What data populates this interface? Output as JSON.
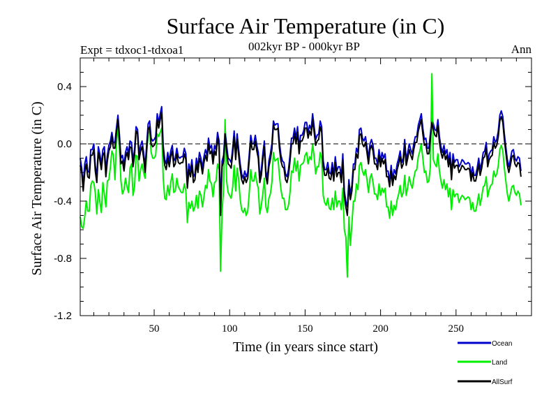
{
  "chart_data": {
    "type": "line",
    "title": "Surface Air Temperature (in C)",
    "subtitle": "002kyr BP - 000kyr BP",
    "left_label": "Expt = tdxoc1-tdxoa1",
    "right_label": "Ann",
    "xlabel": "Time (in years since start)",
    "ylabel": "Surface Air Temperature (in C)",
    "xlim": [
      1,
      300
    ],
    "ylim": [
      -1.2,
      0.6
    ],
    "x_ticks": [
      50,
      100,
      150,
      200,
      250
    ],
    "y_ticks": [
      -1.2,
      -0.8,
      -0.4,
      0.0,
      0.4
    ],
    "y_tick_labels": [
      "-1.2",
      "-0.8",
      "-0.4",
      "0.0",
      "0.4"
    ],
    "reference_line": 0.0,
    "legend_position": "bottom-right",
    "series": [
      {
        "name": "Ocean",
        "color": "#0000cc",
        "values": [
          -0.1,
          -0.17,
          -0.29,
          -0.14,
          -0.09,
          -0.19,
          -0.2,
          -0.04,
          -0.04,
          0.0,
          -0.15,
          -0.23,
          -0.02,
          -0.07,
          -0.14,
          -0.04,
          -0.02,
          -0.19,
          -0.08,
          -0.01,
          0.02,
          0.08,
          0.01,
          0.01,
          0.11,
          0.2,
          0.06,
          -0.1,
          -0.08,
          -0.15,
          -0.06,
          -0.02,
          -0.07,
          0.02,
          0.01,
          -0.12,
          -0.04,
          0.12,
          0.1,
          -0.07,
          -0.01,
          0.02,
          -0.06,
          -0.16,
          -0.01,
          0.14,
          0.16,
          0.04,
          0.02,
          0.03,
          0.05,
          0.21,
          0.15,
          0.21,
          0.26,
          -0.01,
          -0.11,
          -0.14,
          -0.06,
          -0.12,
          -0.05,
          -0.01,
          -0.12,
          -0.1,
          -0.03,
          -0.09,
          -0.1,
          -0.09,
          -0.09,
          -0.03,
          -0.07,
          -0.27,
          -0.14,
          -0.19,
          -0.11,
          -0.23,
          -0.21,
          -0.1,
          -0.16,
          -0.06,
          -0.1,
          -0.17,
          -0.09,
          -0.04,
          -0.08,
          0.04,
          -0.03,
          -0.01,
          -0.1,
          -0.01,
          -0.04,
          0.08,
          0.02,
          -0.44,
          -0.12,
          -0.08,
          0.1,
          -0.01,
          -0.1,
          -0.11,
          -0.13,
          -0.03,
          0.09,
          -0.07,
          0.07,
          -0.04,
          -0.14,
          -0.21,
          -0.24,
          -0.19,
          -0.23,
          -0.2,
          -0.07,
          0.06,
          0.0,
          0.0,
          0.06,
          -0.01,
          -0.06,
          -0.23,
          -0.18,
          -0.07,
          0.02,
          -0.19,
          -0.24,
          -0.12,
          -0.07,
          0.0,
          0.16,
          0.13,
          0.14,
          0.14,
          0.01,
          -0.08,
          -0.12,
          -0.13,
          -0.21,
          -0.23,
          -0.18,
          -0.08,
          0.04,
          0.04,
          0.11,
          0.04,
          0.12,
          -0.03,
          0.06,
          0.06,
          0.09,
          0.15,
          0.15,
          0.08,
          0.13,
          0.1,
          0.21,
          0.12,
          0.03,
          0.06,
          0.07,
          0.16,
          0.12,
          -0.12,
          -0.18,
          -0.18,
          -0.13,
          -0.2,
          -0.21,
          -0.13,
          -0.22,
          -0.09,
          -0.19,
          -0.16,
          -0.16,
          -0.23,
          -0.07,
          -0.33,
          -0.4,
          -0.44,
          -0.25,
          -0.35,
          -0.29,
          -0.14,
          -0.14,
          -0.03,
          -0.06,
          0.1,
          0.11,
          0.04,
          0.02,
          0.05,
          -0.02,
          -0.1,
          0.0,
          0.03,
          -0.01,
          -0.1,
          -0.1,
          -0.14,
          -0.04,
          -0.12,
          -0.06,
          -0.1,
          -0.07,
          -0.19,
          -0.19,
          -0.26,
          -0.15,
          -0.25,
          -0.18,
          -0.21,
          -0.14,
          -0.1,
          -0.05,
          -0.13,
          -0.1,
          0.03,
          -0.11,
          -0.06,
          0.0,
          -0.04,
          -0.07,
          0.0,
          0.05,
          0.05,
          0.13,
          0.17,
          0.21,
          0.11,
          0.03,
          0.04,
          -0.03,
          -0.03,
          0.07,
          0.18,
          0.14,
          0.1,
          0.09,
          0.17,
          0.05,
          -0.02,
          -0.06,
          -0.01,
          -0.07,
          -0.04,
          -0.12,
          -0.06,
          -0.21,
          -0.07,
          -0.13,
          -0.11,
          -0.11,
          -0.16,
          -0.14,
          -0.11,
          -0.12,
          -0.14,
          -0.14,
          -0.13,
          -0.14,
          -0.22,
          -0.16,
          -0.22,
          -0.22,
          -0.17,
          -0.1,
          -0.18,
          -0.13,
          -0.06,
          -0.05,
          0.01,
          -0.12,
          -0.07,
          -0.05,
          -0.04,
          0.05,
          0.01,
          0.03,
          0.09,
          0.2,
          0.23,
          0.19,
          0.07,
          -0.02,
          -0.11,
          -0.16,
          -0.11,
          -0.05,
          -0.04,
          -0.1,
          -0.12,
          -0.09,
          -0.1,
          -0.19
        ]
      },
      {
        "name": "Land",
        "color": "#00ee00",
        "values": [
          -0.51,
          -0.58,
          -0.59,
          -0.51,
          -0.4,
          -0.47,
          -0.47,
          -0.29,
          -0.26,
          -0.27,
          -0.34,
          -0.49,
          -0.32,
          -0.4,
          -0.48,
          -0.27,
          -0.35,
          -0.44,
          -0.26,
          -0.25,
          -0.16,
          -0.05,
          -0.08,
          -0.25,
          0.0,
          0.12,
          -0.04,
          -0.26,
          -0.35,
          -0.32,
          -0.24,
          -0.3,
          -0.34,
          -0.17,
          -0.14,
          -0.36,
          -0.3,
          -0.08,
          -0.09,
          -0.26,
          -0.18,
          -0.14,
          -0.2,
          -0.24,
          -0.07,
          0.07,
          0.1,
          -0.06,
          -0.1,
          -0.1,
          -0.08,
          0.07,
          0.05,
          0.08,
          0.11,
          -0.24,
          -0.38,
          -0.39,
          -0.29,
          -0.36,
          -0.27,
          -0.21,
          -0.34,
          -0.33,
          -0.24,
          -0.3,
          -0.32,
          -0.34,
          -0.34,
          -0.28,
          -0.33,
          -0.55,
          -0.41,
          -0.45,
          -0.4,
          -0.47,
          -0.44,
          -0.36,
          -0.45,
          -0.33,
          -0.36,
          -0.44,
          -0.37,
          -0.29,
          -0.31,
          -0.18,
          -0.26,
          -0.28,
          -0.37,
          -0.27,
          -0.26,
          -0.14,
          -0.18,
          -0.89,
          -0.47,
          -0.31,
          0.17,
          -0.26,
          -0.34,
          -0.36,
          -0.38,
          -0.3,
          -0.15,
          -0.33,
          -0.17,
          -0.25,
          -0.39,
          -0.46,
          -0.48,
          -0.45,
          -0.5,
          -0.47,
          -0.34,
          -0.18,
          -0.26,
          -0.26,
          -0.2,
          -0.27,
          -0.31,
          -0.49,
          -0.43,
          -0.35,
          -0.24,
          -0.44,
          -0.48,
          -0.38,
          -0.35,
          -0.27,
          -0.06,
          -0.12,
          -0.11,
          -0.1,
          -0.22,
          -0.32,
          -0.38,
          -0.38,
          -0.46,
          -0.46,
          -0.43,
          -0.34,
          -0.19,
          -0.2,
          -0.1,
          -0.19,
          -0.12,
          -0.26,
          -0.15,
          -0.14,
          -0.13,
          -0.08,
          -0.06,
          -0.14,
          -0.09,
          -0.11,
          0.0,
          -0.09,
          -0.21,
          -0.16,
          -0.16,
          -0.06,
          -0.1,
          -0.36,
          -0.41,
          -0.43,
          -0.38,
          -0.45,
          -0.46,
          -0.38,
          -0.46,
          -0.33,
          -0.44,
          -0.4,
          -0.4,
          -0.46,
          -0.31,
          -0.6,
          -0.65,
          -0.93,
          -0.51,
          -0.71,
          -0.56,
          -0.4,
          -0.4,
          -0.28,
          -0.32,
          -0.15,
          -0.13,
          -0.19,
          -0.22,
          -0.18,
          -0.25,
          -0.34,
          -0.24,
          -0.21,
          -0.27,
          -0.35,
          -0.35,
          -0.39,
          -0.28,
          -0.36,
          -0.31,
          -0.34,
          -0.31,
          -0.44,
          -0.44,
          -0.52,
          -0.4,
          -0.5,
          -0.43,
          -0.46,
          -0.39,
          -0.35,
          -0.29,
          -0.37,
          -0.34,
          -0.22,
          -0.36,
          -0.3,
          -0.23,
          -0.28,
          -0.31,
          -0.24,
          -0.19,
          -0.18,
          -0.09,
          -0.05,
          0.0,
          -0.1,
          -0.2,
          -0.19,
          -0.27,
          -0.26,
          -0.16,
          0.49,
          -0.11,
          -0.14,
          -0.16,
          -0.07,
          -0.19,
          -0.26,
          -0.31,
          -0.25,
          -0.32,
          -0.28,
          -0.37,
          -0.31,
          -0.46,
          -0.32,
          -0.37,
          -0.35,
          -0.35,
          -0.41,
          -0.38,
          -0.36,
          -0.37,
          -0.39,
          -0.38,
          -0.37,
          -0.38,
          -0.46,
          -0.41,
          -0.47,
          -0.47,
          -0.42,
          -0.35,
          -0.43,
          -0.37,
          -0.3,
          -0.29,
          -0.23,
          -0.37,
          -0.32,
          -0.29,
          -0.28,
          -0.19,
          -0.23,
          -0.21,
          -0.15,
          -0.04,
          -0.01,
          -0.05,
          -0.17,
          -0.26,
          -0.35,
          -0.4,
          -0.35,
          -0.3,
          -0.29,
          -0.34,
          -0.36,
          -0.33,
          -0.35,
          -0.43
        ]
      },
      {
        "name": "AllSurf",
        "color": "#000000",
        "values": [
          -0.15,
          -0.2,
          -0.33,
          -0.2,
          -0.14,
          -0.23,
          -0.24,
          -0.08,
          -0.08,
          -0.04,
          -0.19,
          -0.27,
          -0.06,
          -0.11,
          -0.18,
          -0.08,
          -0.06,
          -0.23,
          -0.12,
          -0.05,
          -0.02,
          0.05,
          -0.03,
          -0.03,
          0.08,
          0.17,
          0.03,
          -0.14,
          -0.12,
          -0.19,
          -0.1,
          -0.06,
          -0.11,
          -0.02,
          -0.03,
          -0.16,
          -0.08,
          0.09,
          0.07,
          -0.11,
          -0.05,
          -0.02,
          -0.1,
          -0.2,
          -0.05,
          0.1,
          0.12,
          0.0,
          -0.02,
          -0.01,
          0.01,
          0.17,
          0.11,
          0.17,
          0.22,
          -0.05,
          -0.15,
          -0.18,
          -0.1,
          -0.16,
          -0.09,
          -0.05,
          -0.16,
          -0.14,
          -0.07,
          -0.13,
          -0.14,
          -0.13,
          -0.13,
          -0.07,
          -0.11,
          -0.31,
          -0.18,
          -0.23,
          -0.15,
          -0.27,
          -0.25,
          -0.14,
          -0.2,
          -0.1,
          -0.14,
          -0.21,
          -0.13,
          -0.08,
          -0.12,
          0.0,
          -0.07,
          -0.05,
          -0.14,
          -0.05,
          -0.08,
          0.04,
          -0.02,
          -0.5,
          -0.16,
          -0.12,
          0.07,
          -0.05,
          -0.14,
          -0.15,
          -0.17,
          -0.07,
          0.05,
          -0.11,
          0.03,
          -0.08,
          -0.18,
          -0.25,
          -0.28,
          -0.23,
          -0.27,
          -0.24,
          -0.11,
          0.02,
          -0.04,
          -0.04,
          0.02,
          -0.05,
          -0.1,
          -0.27,
          -0.22,
          -0.11,
          -0.02,
          -0.23,
          -0.28,
          -0.16,
          -0.11,
          -0.04,
          0.13,
          0.1,
          0.1,
          0.11,
          -0.03,
          -0.12,
          -0.16,
          -0.17,
          -0.25,
          -0.27,
          -0.22,
          -0.12,
          0.0,
          0.0,
          0.07,
          0.0,
          0.08,
          -0.07,
          0.02,
          0.02,
          0.05,
          0.11,
          0.11,
          0.04,
          0.09,
          0.06,
          0.17,
          0.08,
          -0.01,
          0.02,
          0.03,
          0.12,
          0.08,
          -0.16,
          -0.22,
          -0.22,
          -0.17,
          -0.24,
          -0.25,
          -0.17,
          -0.26,
          -0.13,
          -0.23,
          -0.2,
          -0.2,
          -0.27,
          -0.11,
          -0.37,
          -0.44,
          -0.5,
          -0.29,
          -0.39,
          -0.33,
          -0.18,
          -0.18,
          -0.07,
          -0.1,
          0.06,
          0.07,
          0.0,
          -0.02,
          0.01,
          -0.06,
          -0.14,
          -0.04,
          -0.01,
          -0.05,
          -0.14,
          -0.14,
          -0.18,
          -0.08,
          -0.16,
          -0.1,
          -0.14,
          -0.11,
          -0.23,
          -0.23,
          -0.3,
          -0.19,
          -0.29,
          -0.22,
          -0.25,
          -0.18,
          -0.14,
          -0.09,
          -0.17,
          -0.14,
          -0.01,
          -0.15,
          -0.1,
          -0.04,
          -0.08,
          -0.11,
          -0.04,
          0.01,
          0.01,
          0.09,
          0.13,
          0.17,
          0.07,
          -0.01,
          0.0,
          -0.07,
          -0.07,
          0.03,
          0.15,
          0.1,
          0.06,
          0.05,
          0.13,
          0.01,
          -0.06,
          -0.1,
          -0.05,
          -0.11,
          -0.08,
          -0.16,
          -0.1,
          -0.25,
          -0.11,
          -0.17,
          -0.15,
          -0.15,
          -0.2,
          -0.18,
          -0.15,
          -0.16,
          -0.18,
          -0.18,
          -0.17,
          -0.18,
          -0.26,
          -0.2,
          -0.26,
          -0.26,
          -0.21,
          -0.14,
          -0.22,
          -0.17,
          -0.1,
          -0.09,
          -0.03,
          -0.16,
          -0.11,
          -0.09,
          -0.08,
          0.01,
          -0.03,
          -0.01,
          0.05,
          0.16,
          0.19,
          0.15,
          0.03,
          -0.06,
          -0.15,
          -0.2,
          -0.15,
          -0.09,
          -0.08,
          -0.14,
          -0.16,
          -0.13,
          -0.14,
          -0.23
        ]
      }
    ]
  }
}
